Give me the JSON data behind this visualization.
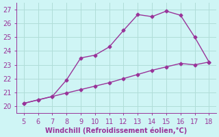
{
  "x": [
    5,
    6,
    7,
    8,
    9,
    10,
    11,
    12,
    13,
    14,
    15,
    16,
    17,
    18
  ],
  "y_upper": [
    20.2,
    20.45,
    20.7,
    21.9,
    23.5,
    23.7,
    24.3,
    25.5,
    26.65,
    26.5,
    26.9,
    26.6,
    25.0,
    23.2
  ],
  "y_lower": [
    20.2,
    20.45,
    20.7,
    20.95,
    21.2,
    21.45,
    21.7,
    22.0,
    22.3,
    22.6,
    22.85,
    23.1,
    23.0,
    23.2
  ],
  "line_color": "#993399",
  "bg_color": "#cff5f5",
  "grid_color": "#b0ddd8",
  "xlabel": "Windchill (Refroidissement éolien,°C)",
  "xlim": [
    4.5,
    18.5
  ],
  "ylim": [
    19.5,
    27.5
  ],
  "xticks": [
    5,
    6,
    7,
    8,
    9,
    10,
    11,
    12,
    13,
    14,
    15,
    16,
    17,
    18
  ],
  "yticks": [
    20,
    21,
    22,
    23,
    24,
    25,
    26,
    27
  ],
  "marker": "D",
  "markersize": 2.5,
  "linewidth": 1.0,
  "tick_fontsize": 7,
  "label_fontsize": 7
}
